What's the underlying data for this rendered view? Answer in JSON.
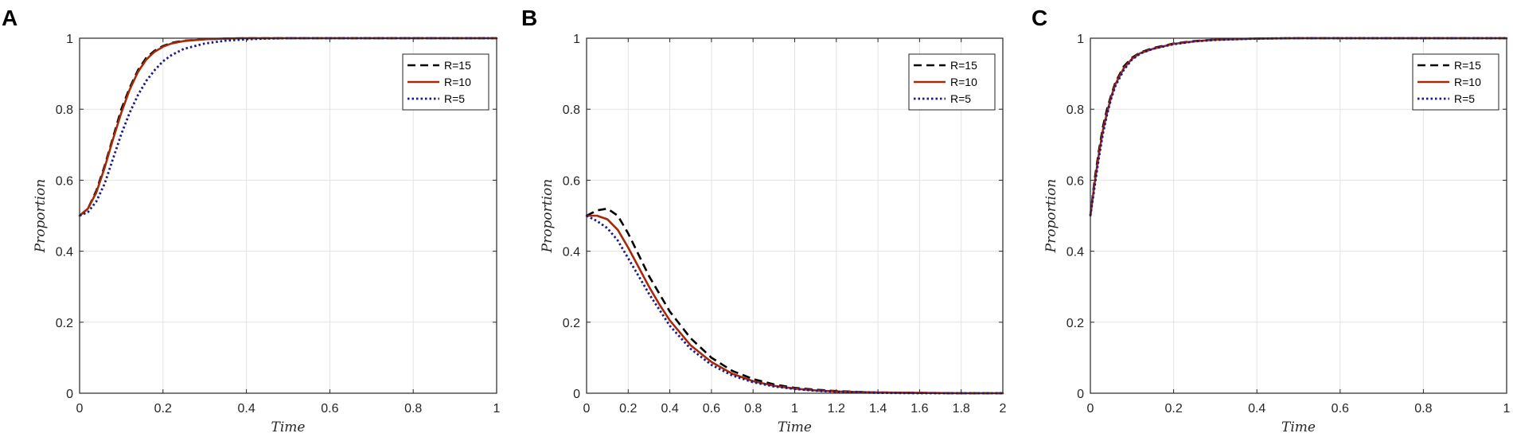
{
  "figure": {
    "series_styles": [
      {
        "name": "R=15",
        "color": "#000000",
        "dash": "10,6",
        "width": 2.6
      },
      {
        "name": "R=10",
        "color": "#a52a0a",
        "dash": "",
        "width": 2.6
      },
      {
        "name": "R=5",
        "color": "#1a1a8c",
        "dash": "2.5,3",
        "width": 2.8
      }
    ]
  },
  "chart_data": [
    {
      "panel": "A",
      "type": "line",
      "xlabel": "Time",
      "ylabel": "Proportion",
      "xlim": [
        0,
        1
      ],
      "ylim": [
        0,
        1
      ],
      "xticks": [
        "0",
        "0.2",
        "0.4",
        "0.6",
        "0.8",
        "1"
      ],
      "yticks": [
        "0",
        "0.2",
        "0.4",
        "0.6",
        "0.8",
        "1"
      ],
      "grid": true,
      "legend": "top-right",
      "series": [
        {
          "name": "R=15",
          "x": [
            0,
            0.02,
            0.04,
            0.06,
            0.08,
            0.1,
            0.12,
            0.14,
            0.16,
            0.18,
            0.2,
            0.22,
            0.25,
            0.3,
            0.35,
            0.4,
            0.5,
            0.6,
            0.7,
            0.8,
            0.9,
            1.0
          ],
          "y": [
            0.5,
            0.52,
            0.57,
            0.64,
            0.72,
            0.8,
            0.86,
            0.91,
            0.945,
            0.965,
            0.978,
            0.987,
            0.993,
            0.997,
            0.999,
            1.0,
            1.0,
            1.0,
            1.0,
            1.0,
            1.0,
            1.0
          ]
        },
        {
          "name": "R=10",
          "x": [
            0,
            0.02,
            0.04,
            0.06,
            0.08,
            0.1,
            0.12,
            0.14,
            0.16,
            0.18,
            0.2,
            0.22,
            0.25,
            0.3,
            0.35,
            0.4,
            0.5,
            0.6,
            0.7,
            0.8,
            0.9,
            1.0
          ],
          "y": [
            0.5,
            0.52,
            0.565,
            0.635,
            0.715,
            0.79,
            0.855,
            0.905,
            0.94,
            0.962,
            0.976,
            0.985,
            0.992,
            0.997,
            0.999,
            1.0,
            1.0,
            1.0,
            1.0,
            1.0,
            1.0,
            1.0
          ]
        },
        {
          "name": "R=5",
          "x": [
            0,
            0.02,
            0.04,
            0.06,
            0.08,
            0.1,
            0.12,
            0.14,
            0.16,
            0.18,
            0.2,
            0.22,
            0.25,
            0.3,
            0.35,
            0.4,
            0.45,
            0.5,
            0.6,
            0.7,
            0.8,
            0.9,
            1.0
          ],
          "y": [
            0.5,
            0.51,
            0.54,
            0.59,
            0.66,
            0.73,
            0.79,
            0.84,
            0.88,
            0.91,
            0.935,
            0.952,
            0.97,
            0.985,
            0.993,
            0.997,
            0.999,
            1.0,
            1.0,
            1.0,
            1.0,
            1.0,
            1.0
          ]
        }
      ]
    },
    {
      "panel": "B",
      "type": "line",
      "xlabel": "Time",
      "ylabel": "Proportion",
      "xlim": [
        0,
        2
      ],
      "ylim": [
        0,
        1
      ],
      "xticks": [
        "0",
        "0.2",
        "0.4",
        "0.6",
        "0.8",
        "1",
        "1.2",
        "1.4",
        "1.6",
        "1.8",
        "2"
      ],
      "yticks": [
        "0",
        "0.2",
        "0.4",
        "0.6",
        "0.8",
        "1"
      ],
      "grid": true,
      "legend": "top-right",
      "series": [
        {
          "name": "R=15",
          "x": [
            0,
            0.05,
            0.1,
            0.15,
            0.2,
            0.25,
            0.3,
            0.35,
            0.4,
            0.5,
            0.6,
            0.7,
            0.8,
            0.9,
            1.0,
            1.1,
            1.2,
            1.4,
            1.6,
            1.8,
            2.0
          ],
          "y": [
            0.5,
            0.515,
            0.52,
            0.5,
            0.45,
            0.39,
            0.33,
            0.28,
            0.23,
            0.155,
            0.1,
            0.063,
            0.04,
            0.025,
            0.015,
            0.01,
            0.006,
            0.002,
            0.001,
            0.0,
            0.0
          ]
        },
        {
          "name": "R=10",
          "x": [
            0,
            0.05,
            0.1,
            0.15,
            0.2,
            0.25,
            0.3,
            0.35,
            0.4,
            0.5,
            0.6,
            0.7,
            0.8,
            0.9,
            1.0,
            1.1,
            1.2,
            1.4,
            1.6,
            1.8,
            2.0
          ],
          "y": [
            0.5,
            0.5,
            0.49,
            0.46,
            0.41,
            0.355,
            0.3,
            0.25,
            0.205,
            0.135,
            0.088,
            0.055,
            0.034,
            0.021,
            0.013,
            0.008,
            0.005,
            0.002,
            0.001,
            0.0,
            0.0
          ]
        },
        {
          "name": "R=5",
          "x": [
            0,
            0.05,
            0.1,
            0.15,
            0.2,
            0.25,
            0.3,
            0.35,
            0.4,
            0.5,
            0.6,
            0.7,
            0.8,
            0.9,
            1.0,
            1.1,
            1.2,
            1.4,
            1.6,
            1.8,
            2.0
          ],
          "y": [
            0.5,
            0.485,
            0.465,
            0.43,
            0.38,
            0.33,
            0.28,
            0.235,
            0.19,
            0.125,
            0.08,
            0.05,
            0.031,
            0.019,
            0.012,
            0.007,
            0.004,
            0.001,
            0.0,
            0.0,
            0.0
          ]
        }
      ]
    },
    {
      "panel": "C",
      "type": "line",
      "xlabel": "Time",
      "ylabel": "Proportion",
      "xlim": [
        0,
        1
      ],
      "ylim": [
        0,
        1
      ],
      "xticks": [
        "0",
        "0.2",
        "0.4",
        "0.6",
        "0.8",
        "1"
      ],
      "yticks": [
        "0",
        "0.2",
        "0.4",
        "0.6",
        "0.8",
        "1"
      ],
      "grid": true,
      "legend": "top-right",
      "series": [
        {
          "name": "R=15",
          "x": [
            0,
            0.01,
            0.02,
            0.03,
            0.04,
            0.05,
            0.06,
            0.08,
            0.1,
            0.12,
            0.15,
            0.2,
            0.25,
            0.3,
            0.4,
            0.5,
            0.6,
            0.7,
            0.8,
            0.9,
            1.0
          ],
          "y": [
            0.5,
            0.6,
            0.68,
            0.75,
            0.8,
            0.84,
            0.875,
            0.92,
            0.945,
            0.96,
            0.972,
            0.985,
            0.992,
            0.996,
            0.999,
            1.0,
            1.0,
            1.0,
            1.0,
            1.0,
            1.0
          ]
        },
        {
          "name": "R=10",
          "x": [
            0,
            0.01,
            0.02,
            0.03,
            0.04,
            0.05,
            0.06,
            0.08,
            0.1,
            0.12,
            0.15,
            0.2,
            0.25,
            0.3,
            0.4,
            0.5,
            0.6,
            0.7,
            0.8,
            0.9,
            1.0
          ],
          "y": [
            0.5,
            0.59,
            0.67,
            0.74,
            0.79,
            0.835,
            0.87,
            0.915,
            0.942,
            0.958,
            0.97,
            0.984,
            0.991,
            0.996,
            0.999,
            1.0,
            1.0,
            1.0,
            1.0,
            1.0,
            1.0
          ]
        },
        {
          "name": "R=5",
          "x": [
            0,
            0.01,
            0.02,
            0.03,
            0.04,
            0.05,
            0.06,
            0.08,
            0.1,
            0.12,
            0.15,
            0.2,
            0.25,
            0.3,
            0.4,
            0.5,
            0.6,
            0.7,
            0.8,
            0.9,
            1.0
          ],
          "y": [
            0.5,
            0.58,
            0.66,
            0.73,
            0.785,
            0.83,
            0.865,
            0.91,
            0.94,
            0.957,
            0.97,
            0.983,
            0.991,
            0.995,
            0.999,
            1.0,
            1.0,
            1.0,
            1.0,
            1.0,
            1.0
          ]
        }
      ]
    }
  ]
}
